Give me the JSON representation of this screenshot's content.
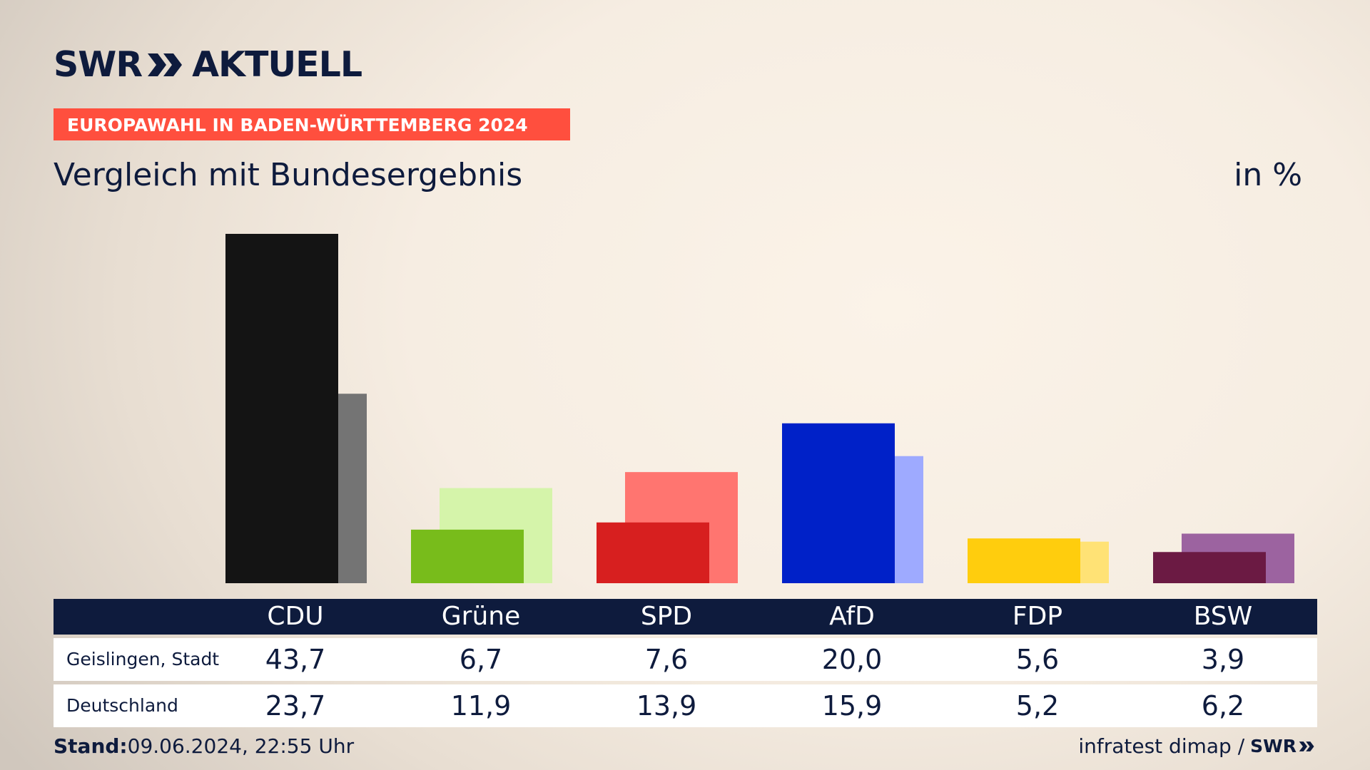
{
  "brand": {
    "name_left": "SWR",
    "name_right": "AKTUELL"
  },
  "ribbon": "EUROPAWAHL IN BADEN-WÜRTTEMBERG 2024",
  "title": "Vergleich mit Bundesergebnis",
  "unit": "in %",
  "chart_data": {
    "type": "bar",
    "title": "Vergleich mit Bundesergebnis",
    "xlabel": "",
    "ylabel": "in %",
    "ylim": [
      0,
      43.7
    ],
    "grid": false,
    "legend": "table-below",
    "categories": [
      "CDU",
      "Grüne",
      "SPD",
      "AfD",
      "FDP",
      "BSW"
    ],
    "series": [
      {
        "name": "Geislingen, Stadt",
        "values": [
          43.7,
          6.7,
          7.6,
          20.0,
          5.6,
          3.9
        ],
        "colors": [
          "#141414",
          "#78bc1b",
          "#d71f1f",
          "#0021c8",
          "#ffcd0d",
          "#6b1a43"
        ]
      },
      {
        "name": "Deutschland",
        "values": [
          23.7,
          11.9,
          13.9,
          15.9,
          5.2,
          6.2
        ],
        "colors": [
          "#747474",
          "#d5f4aa",
          "#ff7570",
          "#9eaaff",
          "#ffe275",
          "#9c63a0"
        ]
      }
    ]
  },
  "table": {
    "rows": [
      {
        "label": "Geislingen, Stadt",
        "values": [
          "43,7",
          "6,7",
          "7,6",
          "20,0",
          "5,6",
          "3,9"
        ]
      },
      {
        "label": "Deutschland",
        "values": [
          "23,7",
          "11,9",
          "13,9",
          "15,9",
          "5,2",
          "6,2"
        ]
      }
    ]
  },
  "footer": {
    "stand_label": "Stand:",
    "stand_value": "09.06.2024, 22:55 Uhr",
    "source": "infratest dimap /",
    "source_brand": "SWR"
  }
}
